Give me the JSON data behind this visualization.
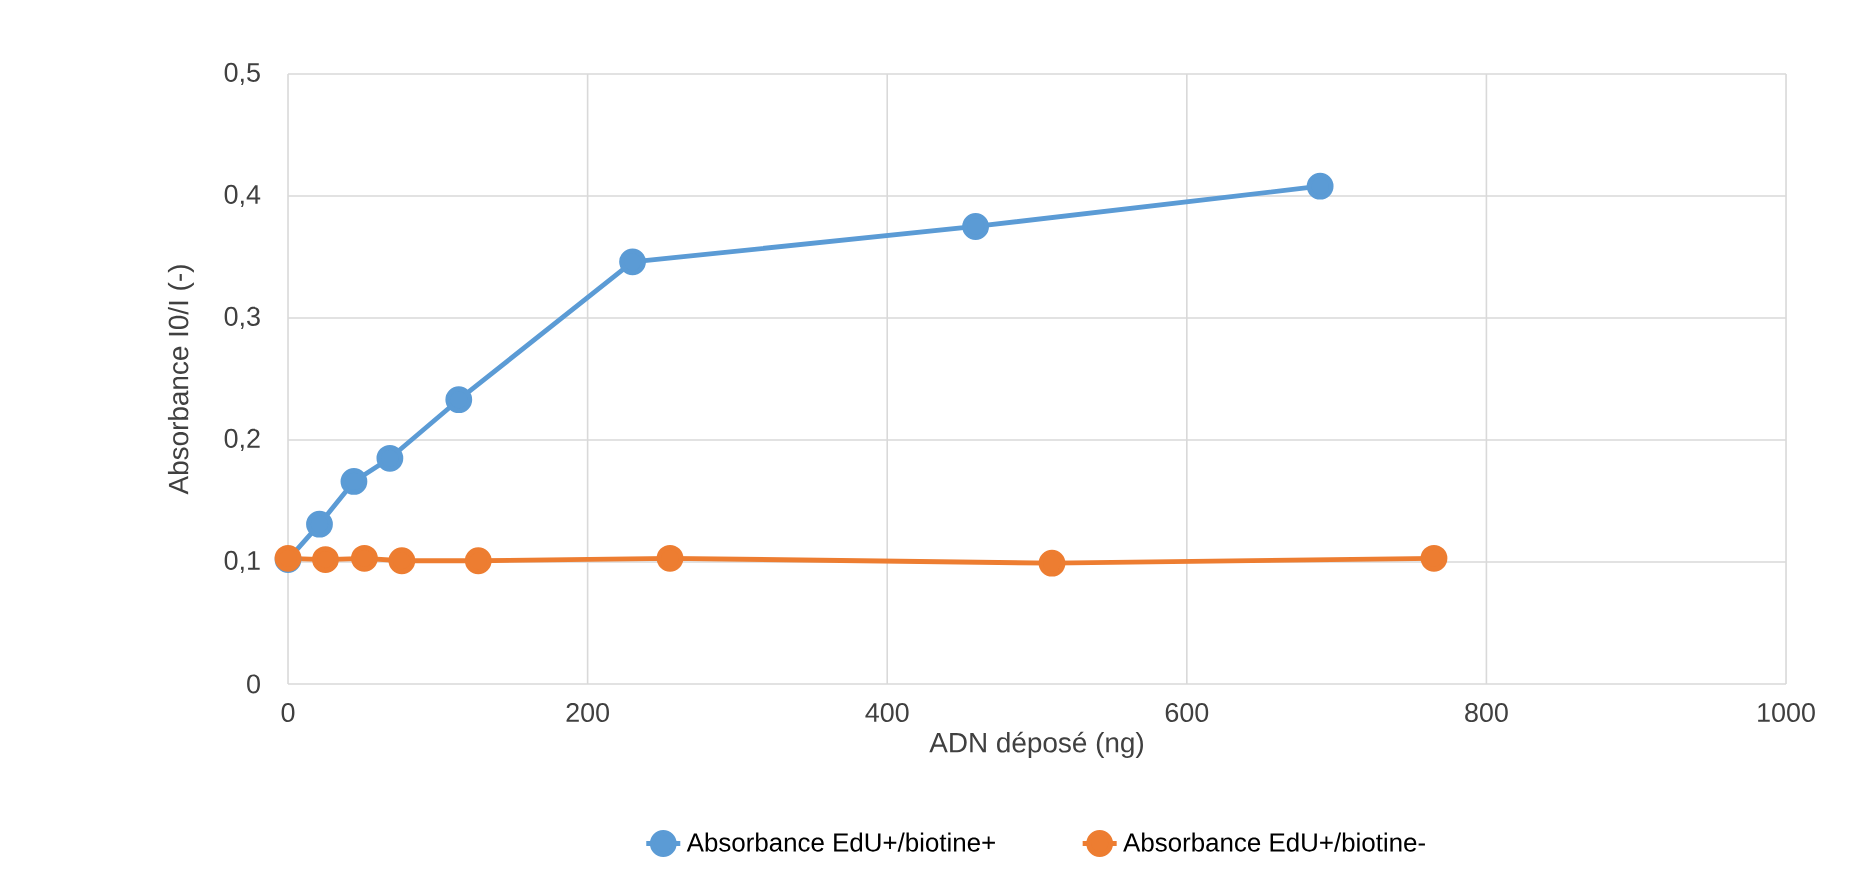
{
  "chart_data": {
    "type": "line",
    "xlabel": "ADN déposé (ng)",
    "ylabel": "Absorbance I0/I (-)",
    "xlim": [
      0,
      1000
    ],
    "ylim": [
      0,
      0.5
    ],
    "xticks": [
      0,
      200,
      400,
      600,
      800,
      1000
    ],
    "yticks": [
      {
        "value": 0,
        "label": "0"
      },
      {
        "value": 0.1,
        "label": "0,1"
      },
      {
        "value": 0.2,
        "label": "0,2"
      },
      {
        "value": 0.3,
        "label": "0,3"
      },
      {
        "value": 0.4,
        "label": "0,4"
      },
      {
        "value": 0.5,
        "label": "0,5"
      }
    ],
    "grid": true,
    "legend": "bottom",
    "marker": "circle",
    "line_style": "solid",
    "series": [
      {
        "name": "Absorbance EdU+/biotine+",
        "color": "#5b9bd5",
        "x": [
          0,
          21,
          44,
          68,
          114,
          230,
          459,
          689
        ],
        "values": [
          0.102,
          0.131,
          0.166,
          0.185,
          0.233,
          0.346,
          0.375,
          0.408
        ]
      },
      {
        "name": "Absorbance EdU+/biotine-",
        "color": "#ed7d31",
        "x": [
          0,
          25,
          51,
          76,
          127,
          255,
          510,
          765
        ],
        "values": [
          0.103,
          0.102,
          0.103,
          0.101,
          0.101,
          0.103,
          0.099,
          0.103
        ]
      }
    ]
  }
}
